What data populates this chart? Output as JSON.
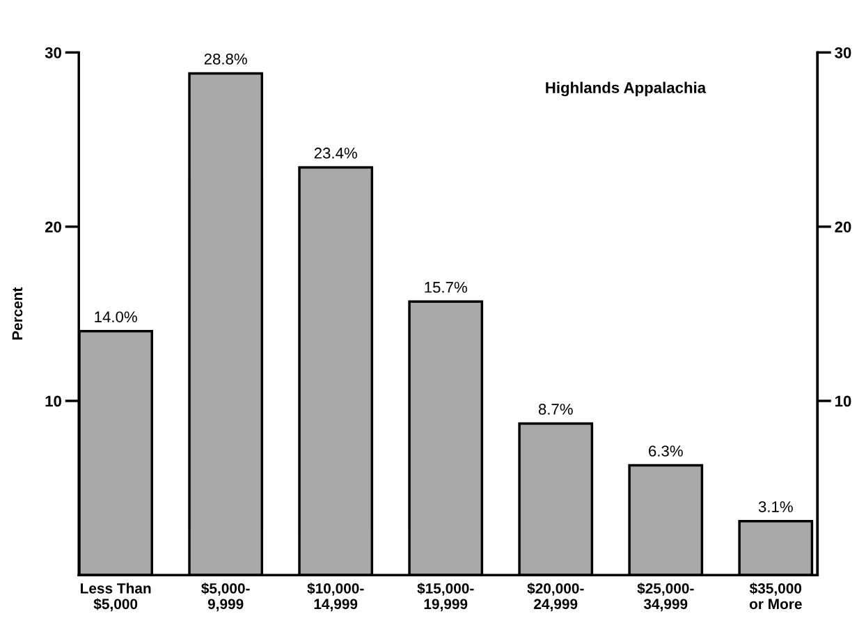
{
  "chart_data": {
    "type": "bar",
    "title": "Highlands Appalachia",
    "ylabel": "Percent",
    "categories": [
      "Less Than\n$5,000",
      "$5,000-\n9,999",
      "$10,000-\n14,999",
      "$15,000-\n19,999",
      "$20,000-\n24,999",
      "$25,000-\n34,999",
      "$35,000\nor More"
    ],
    "values": [
      14.0,
      28.8,
      23.4,
      15.7,
      8.7,
      6.3,
      3.1
    ],
    "value_labels": [
      "14.0%",
      "28.8%",
      "23.4%",
      "15.7%",
      "8.7%",
      "6.3%",
      "3.1%"
    ],
    "color": "#a9a9a9",
    "ylim": [
      0,
      30
    ],
    "yticks": [
      10,
      20,
      30
    ],
    "y2lim": [
      0,
      30
    ],
    "y2ticks": [
      10,
      20,
      30
    ],
    "grid": false,
    "legend": false
  }
}
